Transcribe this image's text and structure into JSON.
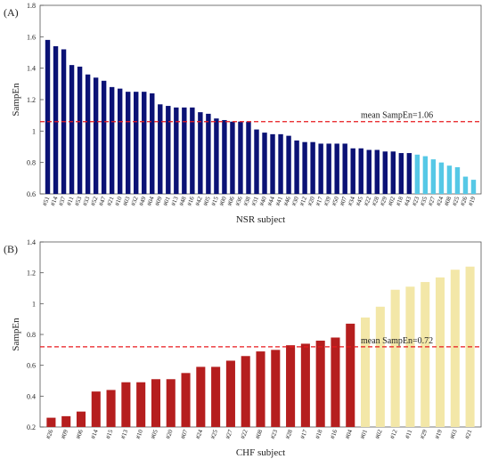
{
  "chart_data": [
    {
      "type": "bar",
      "panel": "(A)",
      "xlabel": "NSR subject",
      "ylabel": "SampEn",
      "categories": [
        "#51",
        "#14",
        "#37",
        "#11",
        "#53",
        "#33",
        "#52",
        "#47",
        "#21",
        "#10",
        "#03",
        "#32",
        "#49",
        "#04",
        "#09",
        "#01",
        "#13",
        "#48",
        "#16",
        "#42",
        "#05",
        "#15",
        "#00",
        "#06",
        "#36",
        "#38",
        "#31",
        "#40",
        "#44",
        "#41",
        "#46",
        "#30",
        "#12",
        "#20",
        "#17",
        "#39",
        "#50",
        "#07",
        "#34",
        "#45",
        "#22",
        "#28",
        "#29",
        "#02",
        "#18",
        "#43",
        "#23",
        "#35",
        "#27",
        "#24",
        "#08",
        "#25",
        "#26",
        "#19"
      ],
      "series": [
        {
          "color": "#0b1275",
          "values": [
            1.58,
            1.54,
            1.52,
            1.42,
            1.41,
            1.36,
            1.34,
            1.32,
            1.28,
            1.27,
            1.25,
            1.25,
            1.25,
            1.24,
            1.17,
            1.16,
            1.15,
            1.15,
            1.15,
            1.12,
            1.11,
            1.08,
            1.07,
            1.06,
            1.06,
            1.06,
            1.01,
            0.99,
            0.98,
            0.98,
            0.97,
            0.94,
            0.93,
            0.93,
            0.92,
            0.92,
            0.92,
            0.92,
            0.89,
            0.89,
            0.88,
            0.88,
            0.87,
            0.87,
            0.86,
            0.86,
            null,
            null,
            null,
            null,
            null,
            null,
            null,
            null
          ]
        },
        {
          "color": "#56c8e6",
          "values": [
            null,
            null,
            null,
            null,
            null,
            null,
            null,
            null,
            null,
            null,
            null,
            null,
            null,
            null,
            null,
            null,
            null,
            null,
            null,
            null,
            null,
            null,
            null,
            null,
            null,
            null,
            null,
            null,
            null,
            null,
            null,
            null,
            null,
            null,
            null,
            null,
            null,
            null,
            null,
            null,
            null,
            null,
            null,
            null,
            null,
            null,
            0.85,
            0.84,
            0.82,
            0.8,
            0.78,
            0.77,
            0.71,
            0.69
          ]
        }
      ],
      "ylim": [
        0.6,
        1.8
      ],
      "yticks": [
        0.6,
        0.8,
        1,
        1.2,
        1.4,
        1.6,
        1.8
      ],
      "mean": {
        "value": 1.06,
        "label": "mean SampEn=1.06"
      },
      "mean_color": "#e8191d"
    },
    {
      "type": "bar",
      "panel": "(B)",
      "xlabel": "CHF subject",
      "ylabel": "SampEn",
      "categories": [
        "#26",
        "#09",
        "#06",
        "#14",
        "#15",
        "#13",
        "#10",
        "#05",
        "#20",
        "#07",
        "#24",
        "#25",
        "#27",
        "#22",
        "#08",
        "#23",
        "#28",
        "#17",
        "#18",
        "#16",
        "#04",
        "#01",
        "#02",
        "#12",
        "#11",
        "#29",
        "#19",
        "#03",
        "#21"
      ],
      "series": [
        {
          "color": "#b51e1e",
          "values": [
            0.26,
            0.27,
            0.3,
            0.43,
            0.44,
            0.49,
            0.49,
            0.51,
            0.51,
            0.55,
            0.59,
            0.59,
            0.63,
            0.66,
            0.69,
            0.7,
            0.73,
            0.74,
            0.76,
            0.78,
            0.87,
            null,
            null,
            null,
            null,
            null,
            null,
            null,
            null
          ]
        },
        {
          "color": "#f3e7a8",
          "values": [
            null,
            null,
            null,
            null,
            null,
            null,
            null,
            null,
            null,
            null,
            null,
            null,
            null,
            null,
            null,
            null,
            null,
            null,
            null,
            null,
            null,
            0.91,
            0.98,
            1.09,
            1.11,
            1.14,
            1.17,
            1.22,
            1.24
          ]
        }
      ],
      "ylim": [
        0.2,
        1.4
      ],
      "yticks": [
        0.2,
        0.4,
        0.6,
        0.8,
        1,
        1.2,
        1.4
      ],
      "mean": {
        "value": 0.72,
        "label": "mean SampEn=0.72"
      },
      "mean_color": "#e8191d"
    }
  ]
}
